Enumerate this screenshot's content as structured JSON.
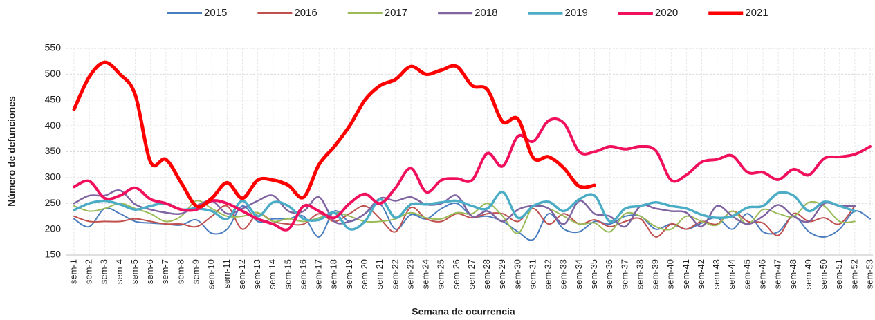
{
  "chart_data": {
    "type": "line",
    "xlabel": "Semana de ocurrencia",
    "ylabel": "Número de defunciones",
    "categories": [
      "sem-1",
      "sem-2",
      "sem-3",
      "sem-4",
      "sem-5",
      "sem-6",
      "sem-7",
      "sem-8",
      "sem-9",
      "sem-10",
      "sem-11",
      "sem-12",
      "sem-13",
      "sem-14",
      "sem-15",
      "sem-16",
      "sem-17",
      "sem-18",
      "sem-19",
      "sem-20",
      "sem-21",
      "sem-22",
      "sem-23",
      "sem-24",
      "sem-25",
      "sem-26",
      "sem-27",
      "sem-28",
      "sem-29",
      "sem-30",
      "sem-31",
      "sem-32",
      "sem-33",
      "sem-34",
      "sem-35",
      "sem-36",
      "sem-37",
      "sem-38",
      "sem-39",
      "sem-40",
      "sem-41",
      "sem-42",
      "sem-43",
      "sem-44",
      "sem-45",
      "sem-46",
      "sem-47",
      "sem-48",
      "sem-49",
      "sem-50",
      "sem-51",
      "sem-52",
      "sem-53"
    ],
    "ylim": [
      150,
      550
    ],
    "yticks": [
      150,
      200,
      250,
      300,
      350,
      400,
      450,
      500,
      550
    ],
    "grid": true,
    "legend": "top",
    "series": [
      {
        "name": "2015",
        "color": "#4a7dbf",
        "line_width": 2,
        "values": [
          220,
          205,
          240,
          230,
          215,
          212,
          210,
          208,
          218,
          192,
          200,
          245,
          215,
          220,
          220,
          225,
          185,
          235,
          215,
          230,
          248,
          200,
          228,
          220,
          240,
          250,
          225,
          225,
          215,
          195,
          180,
          230,
          200,
          195,
          215,
          210,
          225,
          225,
          200,
          210,
          200,
          212,
          222,
          200,
          230,
          195,
          195,
          225,
          195,
          185,
          200,
          235,
          220
        ]
      },
      {
        "name": "2016",
        "color": "#c0504d",
        "line_width": 2,
        "values": [
          225,
          215,
          215,
          215,
          220,
          215,
          210,
          210,
          205,
          225,
          245,
          200,
          230,
          215,
          210,
          210,
          230,
          215,
          230,
          245,
          220,
          195,
          242,
          220,
          215,
          230,
          222,
          230,
          230,
          215,
          240,
          210,
          230,
          210,
          218,
          205,
          215,
          220,
          185,
          210,
          200,
          215,
          210,
          235,
          215,
          212,
          188,
          230,
          215,
          222,
          210,
          245,
          null
        ]
      },
      {
        "name": "2017",
        "color": "#9bbb59",
        "line_width": 2,
        "values": [
          245,
          235,
          240,
          250,
          240,
          230,
          215,
          225,
          255,
          240,
          225,
          225,
          232,
          215,
          220,
          215,
          222,
          232,
          225,
          215,
          215,
          220,
          232,
          222,
          220,
          232,
          230,
          250,
          225,
          192,
          245,
          240,
          225,
          210,
          212,
          195,
          230,
          225,
          205,
          200,
          225,
          215,
          208,
          235,
          210,
          238,
          230,
          225,
          252,
          245,
          215,
          215,
          null
        ]
      },
      {
        "name": "2018",
        "color": "#8064a2",
        "line_width": 2.5,
        "values": [
          250,
          265,
          265,
          275,
          248,
          238,
          232,
          230,
          245,
          255,
          230,
          240,
          255,
          265,
          235,
          235,
          262,
          215,
          215,
          230,
          260,
          255,
          262,
          248,
          250,
          265,
          225,
          235,
          215,
          238,
          245,
          240,
          210,
          255,
          230,
          225,
          205,
          245,
          240,
          235,
          232,
          205,
          245,
          225,
          210,
          225,
          247,
          225,
          215,
          250,
          245,
          245,
          null
        ]
      },
      {
        "name": "2019",
        "color": "#4bacc6",
        "line_width": 3.5,
        "values": [
          237,
          250,
          255,
          248,
          238,
          245,
          250,
          238,
          240,
          235,
          220,
          255,
          225,
          252,
          245,
          220,
          218,
          232,
          200,
          215,
          258,
          222,
          248,
          248,
          252,
          255,
          245,
          240,
          272,
          222,
          245,
          253,
          235,
          258,
          265,
          215,
          240,
          245,
          252,
          245,
          240,
          228,
          222,
          225,
          242,
          245,
          270,
          265,
          235,
          253,
          245,
          235,
          null
        ]
      },
      {
        "name": "2020",
        "color": "#f0105e",
        "line_width": 4,
        "values": [
          282,
          293,
          260,
          265,
          280,
          258,
          250,
          238,
          238,
          255,
          250,
          235,
          220,
          210,
          200,
          245,
          235,
          222,
          250,
          268,
          250,
          280,
          318,
          272,
          295,
          298,
          295,
          347,
          322,
          380,
          370,
          410,
          405,
          350,
          350,
          360,
          355,
          360,
          352,
          295,
          305,
          330,
          335,
          342,
          310,
          310,
          296,
          316,
          305,
          337,
          340,
          345,
          360
        ]
      },
      {
        "name": "2021",
        "color": "#ff0000",
        "line_width": 5,
        "values": [
          432,
          495,
          523,
          500,
          460,
          330,
          335,
          290,
          245,
          260,
          290,
          260,
          295,
          295,
          285,
          262,
          325,
          360,
          400,
          450,
          478,
          490,
          515,
          500,
          508,
          515,
          478,
          470,
          408,
          413,
          338,
          340,
          318,
          283,
          285,
          null,
          null,
          null,
          null,
          null,
          null,
          null,
          null,
          null,
          null,
          null,
          null,
          null,
          null,
          null,
          null,
          null,
          null
        ]
      }
    ]
  }
}
